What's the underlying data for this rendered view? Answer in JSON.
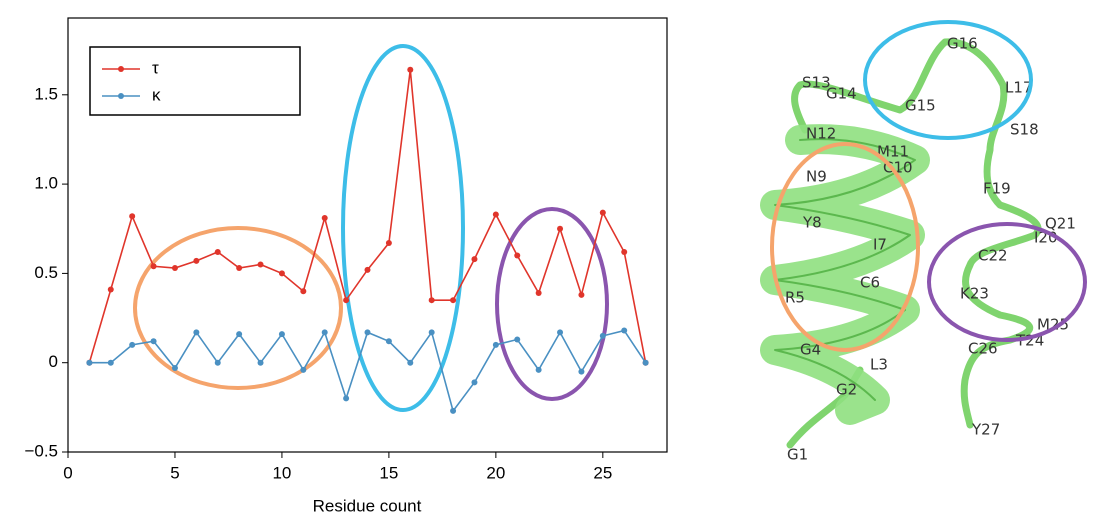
{
  "chart_data": {
    "type": "line",
    "x": [
      1,
      2,
      3,
      4,
      5,
      6,
      7,
      8,
      9,
      10,
      11,
      12,
      13,
      14,
      15,
      16,
      17,
      18,
      19,
      20,
      21,
      22,
      23,
      24,
      25,
      26,
      27
    ],
    "series": [
      {
        "name": "τ",
        "color": "#e0352b",
        "values": [
          0,
          0.41,
          0.82,
          0.54,
          0.53,
          0.57,
          0.62,
          0.53,
          0.55,
          0.5,
          0.4,
          0.81,
          0.35,
          0.52,
          0.67,
          1.64,
          0.35,
          0.35,
          0.58,
          0.83,
          0.6,
          0.39,
          0.75,
          0.38,
          0.84,
          0.62,
          0
        ]
      },
      {
        "name": "κ",
        "color": "#4a90c2",
        "values": [
          0,
          0,
          0.1,
          0.12,
          -0.03,
          0.17,
          0,
          0.16,
          0,
          0.16,
          -0.04,
          0.17,
          -0.2,
          0.17,
          0.12,
          0,
          0.17,
          -0.27,
          -0.11,
          0.1,
          0.13,
          -0.04,
          0.17,
          -0.05,
          0.15,
          0.18,
          0
        ]
      }
    ],
    "xlabel": "Residue count",
    "xlim": [
      0,
      28
    ],
    "xticks": [
      0,
      5,
      10,
      15,
      20,
      25
    ],
    "ylim": [
      -0.5,
      1.93
    ],
    "yticks": [
      {
        "value": -0.5,
        "label": "−0.5"
      },
      0,
      0.5,
      {
        "value": 1.0,
        "label": "1.0"
      },
      1.5
    ],
    "legend": "upper left"
  },
  "structure": {
    "residue_labels": [
      "G1",
      "G2",
      "L3",
      "G4",
      "R5",
      "C6",
      "I7",
      "Y8",
      "N9",
      "C10",
      "M11",
      "N12",
      "S13",
      "G14",
      "G15",
      "G16",
      "L17",
      "S18",
      "F19",
      "I20",
      "Q21",
      "C22",
      "K23",
      "T24",
      "M25",
      "C26",
      "Y27"
    ]
  }
}
